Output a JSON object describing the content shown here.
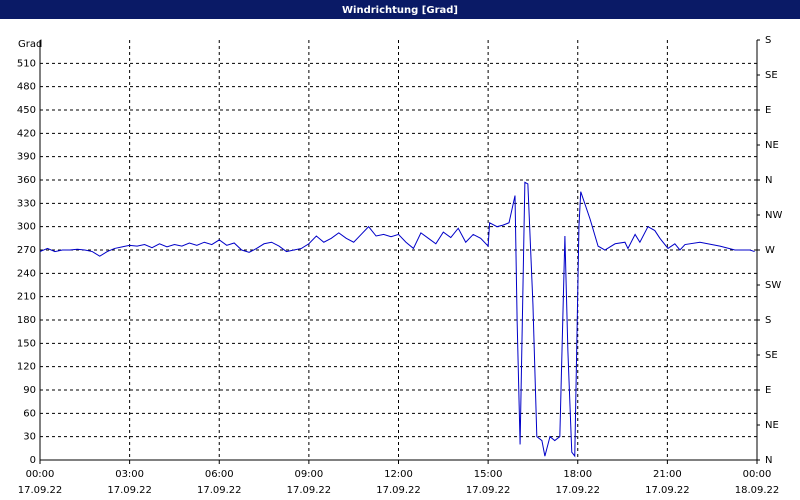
{
  "chart_data": {
    "type": "line",
    "title": "Windrichtung [Grad]",
    "y_label": "Grad",
    "x": [
      0,
      0.25,
      0.5,
      0.75,
      1,
      1.25,
      1.5,
      1.75,
      2,
      2.25,
      2.5,
      2.75,
      3,
      3.25,
      3.5,
      3.75,
      4,
      4.25,
      4.5,
      4.75,
      5,
      5.25,
      5.5,
      5.75,
      6,
      6.25,
      6.5,
      6.75,
      7,
      7.25,
      7.5,
      7.75,
      8,
      8.25,
      8.5,
      8.75,
      9,
      9.25,
      9.5,
      9.75,
      10,
      10.25,
      10.5,
      10.75,
      11,
      11.25,
      11.5,
      11.75,
      12,
      12.25,
      12.5,
      12.75,
      13,
      13.25,
      13.5,
      13.75,
      14,
      14.25,
      14.5,
      14.75,
      15,
      15.05,
      15.3,
      15.5,
      15.7,
      15.9,
      15.97,
      16.07,
      16.23,
      16.33,
      16.5,
      16.63,
      16.8,
      16.9,
      17.07,
      17.23,
      17.4,
      17.57,
      17.67,
      17.8,
      17.9,
      18.04,
      18.1,
      18.41,
      18.68,
      18.91,
      19.25,
      19.58,
      19.68,
      19.92,
      20.08,
      20.35,
      20.58,
      20.75,
      21.02,
      21.25,
      21.42,
      21.59,
      22.09,
      22.76,
      23.26,
      23.76,
      23.92
    ],
    "values": [
      268,
      272,
      268,
      270,
      270,
      271,
      270,
      268,
      262,
      268,
      272,
      274,
      276,
      275,
      277,
      273,
      278,
      274,
      277,
      275,
      279,
      276,
      280,
      277,
      283,
      276,
      279,
      270,
      267,
      272,
      278,
      280,
      275,
      268,
      270,
      272,
      278,
      288,
      280,
      285,
      292,
      285,
      280,
      290,
      300,
      288,
      290,
      287,
      290,
      280,
      272,
      292,
      285,
      278,
      293,
      286,
      298,
      280,
      290,
      285,
      275,
      305,
      300,
      302,
      305,
      340,
      180,
      20,
      357,
      355,
      200,
      30,
      25,
      5,
      30,
      25,
      30,
      288,
      140,
      10,
      5,
      300,
      345,
      310,
      275,
      270,
      278,
      280,
      272,
      290,
      280,
      300,
      295,
      285,
      272,
      278,
      270,
      277,
      280,
      275,
      270,
      270,
      268
    ],
    "color": "#0000c8",
    "xlim": [
      0,
      24
    ],
    "xticks": [
      {
        "value": 0,
        "label": "00:00"
      },
      {
        "value": 3,
        "label": "03:00"
      },
      {
        "value": 6,
        "label": "06:00"
      },
      {
        "value": 9,
        "label": "09:00"
      },
      {
        "value": 12,
        "label": "12:00"
      },
      {
        "value": 15,
        "label": "15:00"
      },
      {
        "value": 18,
        "label": "18:00"
      },
      {
        "value": 21,
        "label": "21:00"
      },
      {
        "value": 24,
        "label": "00:00"
      }
    ],
    "xtick_dates": [
      "17.09.22",
      "17.09.22",
      "17.09.22",
      "17.09.22",
      "17.09.22",
      "17.09.22",
      "17.09.22",
      "17.09.22",
      "18.09.22"
    ],
    "ylim": [
      0,
      540
    ],
    "yticks": [
      0,
      30,
      60,
      90,
      120,
      150,
      180,
      210,
      240,
      270,
      300,
      330,
      360,
      390,
      420,
      450,
      480,
      510
    ],
    "y2lim": [
      0,
      540
    ],
    "y2ticks": [
      {
        "value": 0,
        "label": "N"
      },
      {
        "value": 45,
        "label": "NE"
      },
      {
        "value": 90,
        "label": "E"
      },
      {
        "value": 135,
        "label": "SE"
      },
      {
        "value": 180,
        "label": "S"
      },
      {
        "value": 225,
        "label": "SW"
      },
      {
        "value": 270,
        "label": "W"
      },
      {
        "value": 315,
        "label": "NW"
      },
      {
        "value": 360,
        "label": "N"
      },
      {
        "value": 405,
        "label": "NE"
      },
      {
        "value": 450,
        "label": "E"
      },
      {
        "value": 495,
        "label": "SE"
      },
      {
        "value": 540,
        "label": "S"
      }
    ],
    "grid": true
  }
}
